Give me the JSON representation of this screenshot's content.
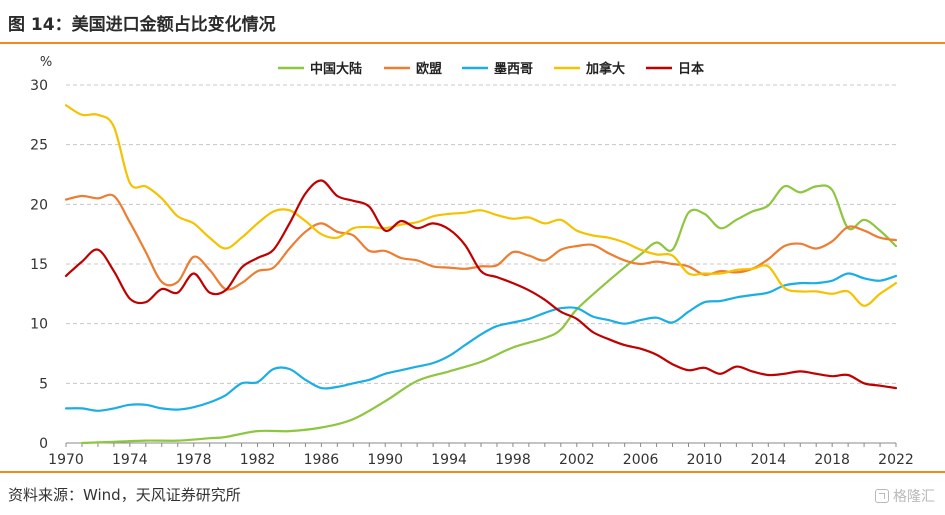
{
  "figure": {
    "title": "图 14：美国进口金额占比变化情况",
    "source": "资料来源：Wind，天风证券研究所",
    "watermark": "格隆汇"
  },
  "colors": {
    "accent_rule": "#f08a1c",
    "grid": "#c8c8c8"
  },
  "chart_data": {
    "type": "line",
    "title": "",
    "ylabel": "%",
    "xlabel": "",
    "ylim": [
      0,
      30
    ],
    "yticks": [
      0,
      5,
      10,
      15,
      20,
      25,
      30
    ],
    "xlim": [
      1970,
      2022
    ],
    "xticks": [
      1970,
      1974,
      1978,
      1982,
      1986,
      1990,
      1994,
      1998,
      2002,
      2006,
      2010,
      2014,
      2018,
      2022
    ],
    "grid": "horizontal dashed",
    "legend_position": "top",
    "series": [
      {
        "name": "中国大陆",
        "color": "#8dc63f",
        "x": [
          1971,
          1973,
          1975,
          1977,
          1979,
          1980,
          1982,
          1984,
          1986,
          1988,
          1990,
          1992,
          1994,
          1996,
          1998,
          2000,
          2001,
          2002,
          2004,
          2006,
          2007,
          2008,
          2009,
          2010,
          2011,
          2012,
          2013,
          2014,
          2015,
          2016,
          2017,
          2018,
          2019,
          2020,
          2021,
          2022
        ],
        "y": [
          0,
          0.1,
          0.2,
          0.2,
          0.4,
          0.5,
          1.0,
          1.0,
          1.3,
          2.0,
          3.5,
          5.2,
          6.0,
          6.8,
          8.0,
          8.8,
          9.5,
          11.2,
          13.6,
          15.8,
          16.8,
          16.2,
          19.3,
          19.2,
          18.0,
          18.7,
          19.4,
          19.9,
          21.5,
          21.0,
          21.5,
          21.2,
          18.0,
          18.7,
          17.8,
          16.5
        ]
      },
      {
        "name": "欧盟",
        "color": "#ed7d31",
        "x": [
          1970,
          1971,
          1972,
          1973,
          1974,
          1975,
          1976,
          1977,
          1978,
          1979,
          1980,
          1981,
          1982,
          1983,
          1984,
          1985,
          1986,
          1987,
          1988,
          1989,
          1990,
          1991,
          1992,
          1993,
          1994,
          1995,
          1996,
          1997,
          1998,
          1999,
          2000,
          2001,
          2002,
          2003,
          2004,
          2005,
          2006,
          2007,
          2008,
          2009,
          2010,
          2011,
          2012,
          2013,
          2014,
          2015,
          2016,
          2017,
          2018,
          2019,
          2020,
          2021,
          2022
        ],
        "y": [
          20.4,
          20.7,
          20.5,
          20.7,
          18.5,
          16.0,
          13.5,
          13.5,
          15.6,
          14.5,
          12.9,
          13.4,
          14.4,
          14.7,
          16.3,
          17.7,
          18.4,
          17.7,
          17.4,
          16.1,
          16.1,
          15.5,
          15.3,
          14.8,
          14.7,
          14.6,
          14.8,
          14.9,
          16.0,
          15.7,
          15.3,
          16.2,
          16.5,
          16.6,
          15.9,
          15.3,
          15.0,
          15.2,
          15.0,
          14.8,
          14.1,
          14.4,
          14.3,
          14.6,
          15.4,
          16.5,
          16.7,
          16.3,
          16.9,
          18.1,
          17.8,
          17.2,
          17.0
        ]
      },
      {
        "name": "墨西哥",
        "color": "#1aaee6",
        "x": [
          1970,
          1971,
          1972,
          1973,
          1974,
          1975,
          1976,
          1977,
          1978,
          1979,
          1980,
          1981,
          1982,
          1983,
          1984,
          1985,
          1986,
          1987,
          1988,
          1989,
          1990,
          1991,
          1992,
          1993,
          1994,
          1995,
          1996,
          1997,
          1998,
          1999,
          2000,
          2001,
          2002,
          2003,
          2004,
          2005,
          2006,
          2007,
          2008,
          2009,
          2010,
          2011,
          2012,
          2013,
          2014,
          2015,
          2016,
          2017,
          2018,
          2019,
          2020,
          2021,
          2022
        ],
        "y": [
          2.9,
          2.9,
          2.7,
          2.9,
          3.2,
          3.2,
          2.9,
          2.8,
          3.0,
          3.4,
          4.0,
          5.0,
          5.1,
          6.2,
          6.2,
          5.3,
          4.6,
          4.7,
          5.0,
          5.3,
          5.8,
          6.1,
          6.4,
          6.7,
          7.3,
          8.2,
          9.1,
          9.8,
          10.1,
          10.4,
          10.9,
          11.3,
          11.3,
          10.6,
          10.3,
          10.0,
          10.3,
          10.5,
          10.1,
          11.0,
          11.8,
          11.9,
          12.2,
          12.4,
          12.6,
          13.2,
          13.4,
          13.4,
          13.6,
          14.2,
          13.8,
          13.6,
          14.0
        ]
      },
      {
        "name": "加拿大",
        "color": "#f5c200",
        "x": [
          1970,
          1971,
          1972,
          1973,
          1974,
          1975,
          1976,
          1977,
          1978,
          1979,
          1980,
          1981,
          1982,
          1983,
          1984,
          1985,
          1986,
          1987,
          1988,
          1989,
          1990,
          1991,
          1992,
          1993,
          1994,
          1995,
          1996,
          1997,
          1998,
          1999,
          2000,
          2001,
          2002,
          2003,
          2004,
          2005,
          2006,
          2007,
          2008,
          2009,
          2010,
          2011,
          2012,
          2013,
          2014,
          2015,
          2016,
          2017,
          2018,
          2019,
          2020,
          2021,
          2022
        ],
        "y": [
          28.3,
          27.5,
          27.5,
          26.5,
          21.8,
          21.5,
          20.5,
          19.0,
          18.4,
          17.2,
          16.3,
          17.2,
          18.4,
          19.4,
          19.5,
          18.6,
          17.5,
          17.2,
          18.0,
          18.1,
          18.0,
          18.3,
          18.5,
          19.0,
          19.2,
          19.3,
          19.5,
          19.1,
          18.8,
          18.9,
          18.4,
          18.7,
          17.8,
          17.4,
          17.2,
          16.8,
          16.2,
          15.8,
          15.7,
          14.2,
          14.2,
          14.2,
          14.5,
          14.6,
          14.8,
          13.0,
          12.7,
          12.7,
          12.5,
          12.7,
          11.5,
          12.5,
          13.4
        ]
      },
      {
        "name": "日本",
        "color": "#c00000",
        "x": [
          1970,
          1971,
          1972,
          1973,
          1974,
          1975,
          1976,
          1977,
          1978,
          1979,
          1980,
          1981,
          1982,
          1983,
          1984,
          1985,
          1986,
          1987,
          1988,
          1989,
          1990,
          1991,
          1992,
          1993,
          1994,
          1995,
          1996,
          1997,
          1998,
          1999,
          2000,
          2001,
          2002,
          2003,
          2004,
          2005,
          2006,
          2007,
          2008,
          2009,
          2010,
          2011,
          2012,
          2013,
          2014,
          2015,
          2016,
          2017,
          2018,
          2019,
          2020,
          2021,
          2022
        ],
        "y": [
          14.0,
          15.2,
          16.2,
          14.4,
          12.1,
          11.8,
          12.9,
          12.6,
          14.2,
          12.6,
          12.8,
          14.7,
          15.5,
          16.2,
          18.4,
          20.9,
          22.0,
          20.7,
          20.3,
          19.8,
          17.8,
          18.6,
          18.0,
          18.4,
          17.9,
          16.6,
          14.4,
          13.9,
          13.4,
          12.8,
          12.0,
          11.0,
          10.4,
          9.3,
          8.7,
          8.2,
          7.9,
          7.4,
          6.6,
          6.1,
          6.3,
          5.8,
          6.4,
          6.0,
          5.7,
          5.8,
          6.0,
          5.8,
          5.6,
          5.7,
          5.0,
          4.8,
          4.6
        ]
      }
    ]
  }
}
